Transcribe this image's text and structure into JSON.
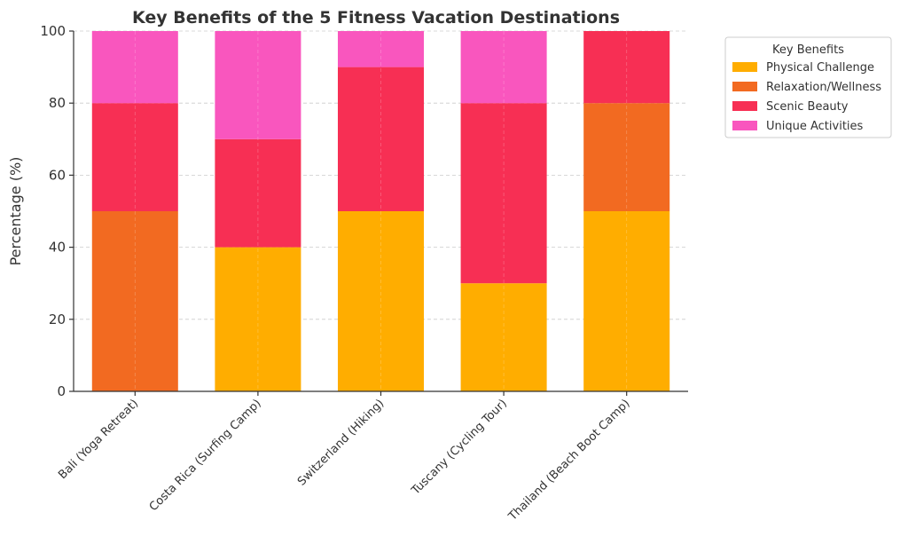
{
  "chart_data": {
    "type": "bar",
    "stacked": true,
    "title": "Key Benefits of the 5 Fitness Vacation Destinations",
    "xlabel": "",
    "ylabel": "Percentage (%)",
    "ylim": [
      0,
      100
    ],
    "yticks": [
      0,
      20,
      40,
      60,
      80,
      100
    ],
    "grid": true,
    "legend": {
      "title": "Key Benefits",
      "placement": "upper-right-outside"
    },
    "categories": [
      "Bali (Yoga Retreat)",
      "Costa Rica (Surfing Camp)",
      "Switzerland (Hiking)",
      "Tuscany (Cycling Tour)",
      "Thailand (Beach Boot Camp)"
    ],
    "series": [
      {
        "name": "Physical Challenge",
        "color": "#FFAD00",
        "values": [
          0,
          40,
          50,
          30,
          50
        ]
      },
      {
        "name": "Relaxation/Wellness",
        "color": "#F26A21",
        "values": [
          50,
          0,
          0,
          0,
          30
        ]
      },
      {
        "name": "Scenic Beauty",
        "color": "#F72F54",
        "values": [
          30,
          30,
          40,
          50,
          20
        ]
      },
      {
        "name": "Unique Activities",
        "color": "#F956BE",
        "values": [
          20,
          30,
          10,
          20,
          0
        ]
      }
    ]
  }
}
